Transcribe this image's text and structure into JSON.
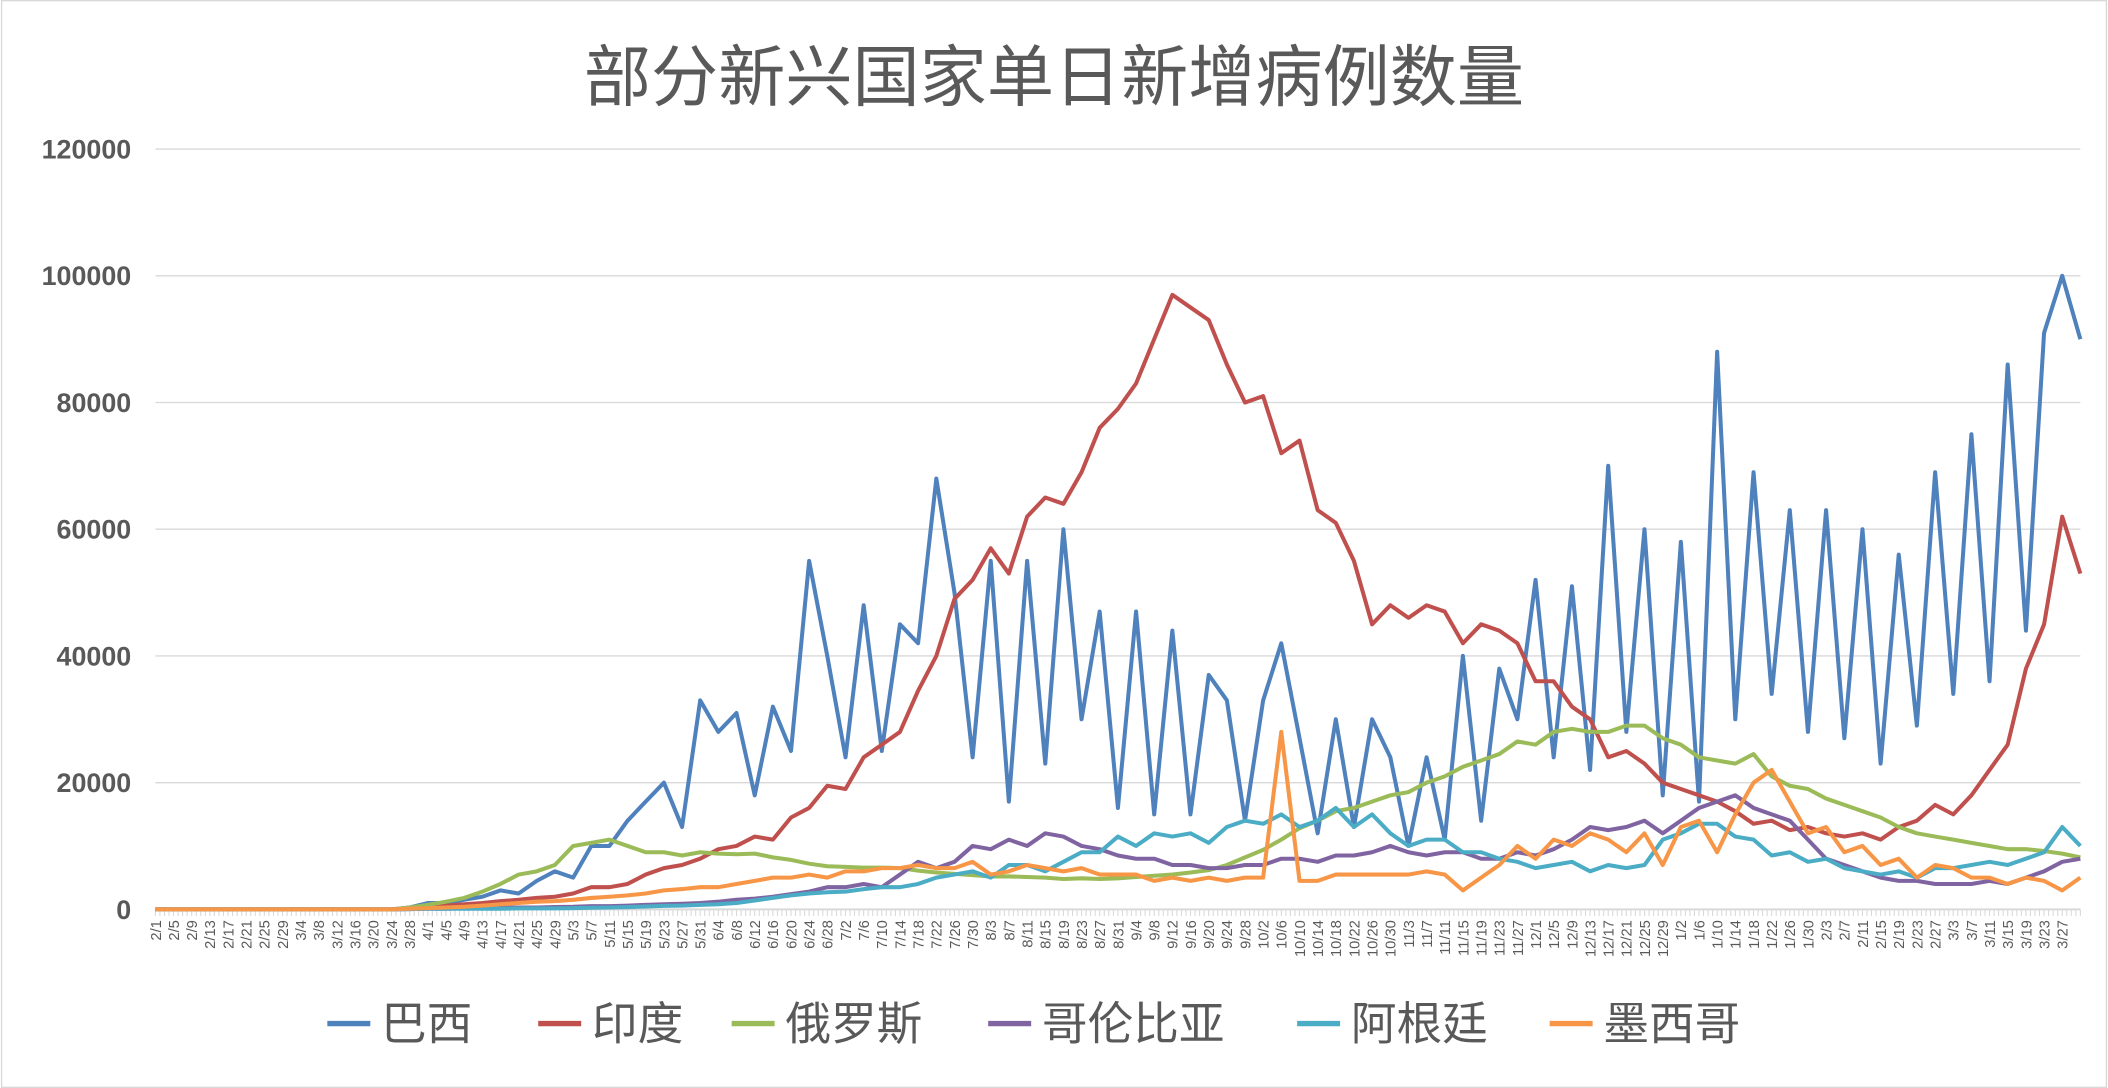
{
  "chart_data": {
    "type": "line",
    "title": "部分新兴国家单日新增病例数量",
    "xlabel": "",
    "ylabel": "",
    "ylim": [
      0,
      120000
    ],
    "yticks": [
      "0",
      "20000",
      "40000",
      "60000",
      "80000",
      "100000",
      "120000"
    ],
    "grid": true,
    "legend_position": "bottom",
    "x_tick_labels": [
      "2/1",
      "2/5",
      "2/9",
      "2/13",
      "2/17",
      "2/21",
      "2/25",
      "2/29",
      "3/4",
      "3/8",
      "3/12",
      "3/16",
      "3/20",
      "3/24",
      "3/28",
      "4/1",
      "4/5",
      "4/9",
      "4/13",
      "4/17",
      "4/21",
      "4/25",
      "4/29",
      "5/3",
      "5/7",
      "5/11",
      "5/15",
      "5/19",
      "5/23",
      "5/27",
      "5/31",
      "6/4",
      "6/8",
      "6/12",
      "6/16",
      "6/20",
      "6/24",
      "6/28",
      "7/2",
      "7/6",
      "7/10",
      "7/14",
      "7/18",
      "7/22",
      "7/26",
      "7/30",
      "8/3",
      "8/7",
      "8/11",
      "8/15",
      "8/19",
      "8/23",
      "8/27",
      "8/31",
      "9/4",
      "9/8",
      "9/12",
      "9/16",
      "9/20",
      "9/24",
      "9/28",
      "10/2",
      "10/6",
      "10/10",
      "10/14",
      "10/18",
      "10/22",
      "10/26",
      "10/30",
      "11/3",
      "11/7",
      "11/11",
      "11/15",
      "11/19",
      "11/23",
      "11/27",
      "12/1",
      "12/5",
      "12/9",
      "12/13",
      "12/17",
      "12/21",
      "12/25",
      "12/29",
      "1/2",
      "1/6",
      "1/10",
      "1/14",
      "1/18",
      "1/22",
      "1/26",
      "1/30",
      "2/3",
      "2/7",
      "2/11",
      "2/15",
      "2/19",
      "2/23",
      "2/27",
      "3/3",
      "3/7",
      "3/11",
      "3/15",
      "3/19",
      "3/23",
      "3/27"
    ],
    "x_last_point": "3/31",
    "series": [
      {
        "name": "巴西",
        "color": "#4f81bd",
        "values": [
          0,
          0,
          0,
          0,
          0,
          0,
          0,
          0,
          0,
          0,
          0,
          0,
          0,
          0,
          300,
          1000,
          1000,
          1500,
          2000,
          3000,
          2500,
          4500,
          6000,
          5000,
          10000,
          10000,
          14000,
          17000,
          20000,
          13000,
          33000,
          28000,
          31000,
          18000,
          32000,
          25000,
          55000,
          40000,
          24000,
          48000,
          25000,
          45000,
          42000,
          68000,
          50000,
          24000,
          55000,
          17000,
          55000,
          23000,
          60000,
          30000,
          47000,
          16000,
          47000,
          15000,
          44000,
          15000,
          37000,
          33000,
          14000,
          33000,
          42000,
          27000,
          12000,
          30000,
          13000,
          30000,
          24000,
          10000,
          24000,
          11000,
          40000,
          14000,
          38000,
          30000,
          52000,
          24000,
          51000,
          22000,
          70000,
          28000,
          60000,
          18000,
          58000,
          17000,
          88000,
          30000,
          69000,
          34000,
          63000,
          28000,
          63000,
          27000,
          60000,
          23000,
          56000,
          29000,
          69000,
          34000,
          75000,
          36000,
          86000,
          44000,
          91000,
          100000,
          90000
        ]
      },
      {
        "name": "印度",
        "color": "#c0504d",
        "values": [
          0,
          0,
          0,
          0,
          0,
          0,
          0,
          0,
          0,
          0,
          0,
          0,
          0,
          0,
          200,
          500,
          600,
          800,
          1000,
          1300,
          1500,
          1800,
          2000,
          2500,
          3500,
          3500,
          4000,
          5500,
          6500,
          7000,
          8000,
          9500,
          10000,
          11500,
          11000,
          14500,
          16000,
          19500,
          19000,
          24000,
          26000,
          28000,
          34500,
          40000,
          49000,
          52000,
          57000,
          53000,
          62000,
          65000,
          64000,
          69000,
          76000,
          79000,
          83000,
          90000,
          97000,
          95000,
          93000,
          86000,
          80000,
          81000,
          72000,
          74000,
          63000,
          61000,
          55000,
          45000,
          48000,
          46000,
          48000,
          47000,
          42000,
          45000,
          44000,
          42000,
          36000,
          36000,
          32000,
          30000,
          24000,
          25000,
          23000,
          20000,
          19000,
          18000,
          17000,
          15500,
          13500,
          14000,
          12500,
          13000,
          12000,
          11500,
          12000,
          11000,
          13000,
          14000,
          16500,
          15000,
          18000,
          22000,
          26000,
          38000,
          45000,
          62000,
          53000
        ]
      },
      {
        "name": "俄罗斯",
        "color": "#9bbb59",
        "values": [
          0,
          0,
          0,
          0,
          0,
          0,
          0,
          0,
          0,
          0,
          0,
          0,
          0,
          0,
          300,
          700,
          1200,
          1800,
          2800,
          4000,
          5500,
          6000,
          7000,
          10000,
          10500,
          11000,
          10000,
          9000,
          9000,
          8500,
          9000,
          8800,
          8700,
          8800,
          8200,
          7800,
          7200,
          6800,
          6700,
          6600,
          6600,
          6500,
          6100,
          5800,
          5600,
          5400,
          5200,
          5200,
          5100,
          5000,
          4800,
          4900,
          4800,
          4900,
          5100,
          5300,
          5500,
          5800,
          6200,
          7000,
          8200,
          9400,
          11000,
          12800,
          14000,
          15500,
          16000,
          17000,
          18000,
          18500,
          20000,
          21000,
          22500,
          23500,
          24500,
          26500,
          26000,
          28000,
          28500,
          28000,
          28000,
          29000,
          29000,
          27000,
          26000,
          24000,
          23500,
          23000,
          24500,
          21000,
          19500,
          19000,
          17500,
          16500,
          15500,
          14500,
          13000,
          12000,
          11500,
          11000,
          10500,
          10000,
          9500,
          9500,
          9200,
          8800,
          8200
        ]
      },
      {
        "name": "哥伦比亚",
        "color": "#8064a2",
        "values": [
          0,
          0,
          0,
          0,
          0,
          0,
          0,
          0,
          0,
          0,
          0,
          0,
          0,
          0,
          50,
          100,
          100,
          150,
          200,
          250,
          300,
          300,
          350,
          400,
          500,
          500,
          600,
          700,
          800,
          900,
          1000,
          1200,
          1500,
          1700,
          2000,
          2400,
          2800,
          3500,
          3500,
          4000,
          3500,
          5500,
          7500,
          6500,
          7500,
          10000,
          9500,
          11000,
          10000,
          12000,
          11500,
          10000,
          9500,
          8500,
          8000,
          8000,
          7000,
          7000,
          6500,
          6500,
          7000,
          7000,
          8000,
          8000,
          7500,
          8500,
          8500,
          9000,
          10000,
          9000,
          8500,
          9000,
          9000,
          8000,
          8000,
          9000,
          8500,
          9500,
          11000,
          13000,
          12500,
          13000,
          14000,
          12000,
          14000,
          16000,
          17000,
          18000,
          16000,
          15000,
          14000,
          11000,
          8000,
          7000,
          6000,
          5000,
          4500,
          4500,
          4000,
          4000,
          4000,
          4500,
          4000,
          5000,
          6000,
          7500,
          8000
        ]
      },
      {
        "name": "阿根廷",
        "color": "#4bacc6",
        "values": [
          0,
          0,
          0,
          0,
          0,
          0,
          0,
          0,
          0,
          0,
          0,
          0,
          0,
          0,
          50,
          100,
          100,
          100,
          100,
          100,
          150,
          150,
          150,
          200,
          250,
          300,
          350,
          450,
          550,
          600,
          700,
          800,
          1000,
          1400,
          1800,
          2200,
          2500,
          2700,
          2800,
          3200,
          3500,
          3500,
          4000,
          5000,
          5500,
          6000,
          5000,
          7000,
          7000,
          6000,
          7500,
          9000,
          9000,
          11500,
          10000,
          12000,
          11500,
          12000,
          10500,
          13000,
          14000,
          13500,
          15000,
          13000,
          14000,
          16000,
          13000,
          15000,
          12000,
          10000,
          11000,
          11000,
          9000,
          9000,
          8000,
          7500,
          6500,
          7000,
          7500,
          6000,
          7000,
          6500,
          7000,
          11000,
          12000,
          13500,
          13500,
          11500,
          11000,
          8500,
          9000,
          7500,
          8000,
          6500,
          6000,
          5500,
          6000,
          5000,
          6500,
          6500,
          7000,
          7500,
          7000,
          8000,
          9000,
          13000,
          10000
        ]
      },
      {
        "name": "墨西哥",
        "color": "#f79646",
        "values": [
          0,
          0,
          0,
          0,
          0,
          0,
          0,
          0,
          0,
          0,
          0,
          0,
          0,
          0,
          100,
          200,
          300,
          400,
          600,
          800,
          1000,
          1200,
          1300,
          1500,
          1800,
          2000,
          2200,
          2500,
          3000,
          3200,
          3500,
          3500,
          4000,
          4500,
          5000,
          5000,
          5500,
          5000,
          6000,
          6000,
          6500,
          6500,
          7000,
          6500,
          6500,
          7500,
          5500,
          6000,
          7000,
          6500,
          6000,
          6500,
          5500,
          5500,
          5500,
          4500,
          5000,
          4500,
          5000,
          4500,
          5000,
          5000,
          28000,
          4500,
          4500,
          5500,
          5500,
          5500,
          5500,
          5500,
          6000,
          5500,
          3000,
          5000,
          7000,
          10000,
          8000,
          11000,
          10000,
          12000,
          11000,
          9000,
          12000,
          7000,
          13000,
          14000,
          9000,
          15000,
          20000,
          22000,
          17000,
          12000,
          13000,
          9000,
          10000,
          7000,
          8000,
          5000,
          7000,
          6500,
          5000,
          5000,
          4000,
          5000,
          4500,
          3000,
          5000
        ]
      }
    ]
  }
}
